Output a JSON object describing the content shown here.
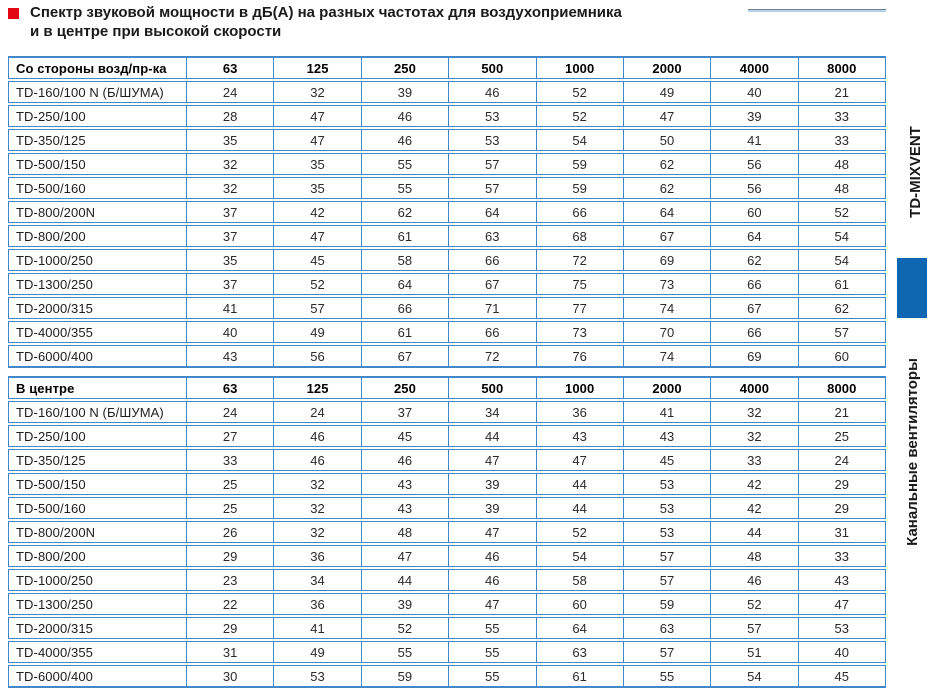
{
  "title": {
    "line1": "Спектр звуковой мощности в дБ(А) на разных частотах для воздухоприемника",
    "line2": "и в центре при высокой скорости"
  },
  "frequencies": [
    "63",
    "125",
    "250",
    "500",
    "1000",
    "2000",
    "4000",
    "8000"
  ],
  "tables": [
    {
      "label": "Со стороны возд/пр-ка",
      "rows": [
        {
          "model": "TD-160/100 N (Б/ШУМА)",
          "values": [
            "24",
            "32",
            "39",
            "46",
            "52",
            "49",
            "40",
            "21"
          ]
        },
        {
          "model": "TD-250/100",
          "values": [
            "28",
            "47",
            "46",
            "53",
            "52",
            "47",
            "39",
            "33"
          ]
        },
        {
          "model": "TD-350/125",
          "values": [
            "35",
            "47",
            "46",
            "53",
            "54",
            "50",
            "41",
            "33"
          ]
        },
        {
          "model": "TD-500/150",
          "values": [
            "32",
            "35",
            "55",
            "57",
            "59",
            "62",
            "56",
            "48"
          ]
        },
        {
          "model": "TD-500/160",
          "values": [
            "32",
            "35",
            "55",
            "57",
            "59",
            "62",
            "56",
            "48"
          ]
        },
        {
          "model": "TD-800/200N",
          "values": [
            "37",
            "42",
            "62",
            "64",
            "66",
            "64",
            "60",
            "52"
          ]
        },
        {
          "model": "TD-800/200",
          "values": [
            "37",
            "47",
            "61",
            "63",
            "68",
            "67",
            "64",
            "54"
          ]
        },
        {
          "model": "TD-1000/250",
          "values": [
            "35",
            "45",
            "58",
            "66",
            "72",
            "69",
            "62",
            "54"
          ]
        },
        {
          "model": "TD-1300/250",
          "values": [
            "37",
            "52",
            "64",
            "67",
            "75",
            "73",
            "66",
            "61"
          ]
        },
        {
          "model": "TD-2000/315",
          "values": [
            "41",
            "57",
            "66",
            "71",
            "77",
            "74",
            "67",
            "62"
          ]
        },
        {
          "model": "TD-4000/355",
          "values": [
            "40",
            "49",
            "61",
            "66",
            "73",
            "70",
            "66",
            "57"
          ]
        },
        {
          "model": "TD-6000/400",
          "values": [
            "43",
            "56",
            "67",
            "72",
            "76",
            "74",
            "69",
            "60"
          ]
        }
      ]
    },
    {
      "label": "В центре",
      "rows": [
        {
          "model": "TD-160/100 N (Б/ШУМА)",
          "values": [
            "24",
            "24",
            "37",
            "34",
            "36",
            "41",
            "32",
            "21"
          ]
        },
        {
          "model": "TD-250/100",
          "values": [
            "27",
            "46",
            "45",
            "44",
            "43",
            "43",
            "32",
            "25"
          ]
        },
        {
          "model": "TD-350/125",
          "values": [
            "33",
            "46",
            "46",
            "47",
            "47",
            "45",
            "33",
            "24"
          ]
        },
        {
          "model": "TD-500/150",
          "values": [
            "25",
            "32",
            "43",
            "39",
            "44",
            "53",
            "42",
            "29"
          ]
        },
        {
          "model": "TD-500/160",
          "values": [
            "25",
            "32",
            "43",
            "39",
            "44",
            "53",
            "42",
            "29"
          ]
        },
        {
          "model": "TD-800/200N",
          "values": [
            "26",
            "32",
            "48",
            "47",
            "52",
            "53",
            "44",
            "31"
          ]
        },
        {
          "model": "TD-800/200",
          "values": [
            "29",
            "36",
            "47",
            "46",
            "54",
            "57",
            "48",
            "33"
          ]
        },
        {
          "model": "TD-1000/250",
          "values": [
            "23",
            "34",
            "44",
            "46",
            "58",
            "57",
            "46",
            "43"
          ]
        },
        {
          "model": "TD-1300/250",
          "values": [
            "22",
            "36",
            "39",
            "47",
            "60",
            "59",
            "52",
            "47"
          ]
        },
        {
          "model": "TD-2000/315",
          "values": [
            "29",
            "41",
            "52",
            "55",
            "64",
            "63",
            "57",
            "53"
          ]
        },
        {
          "model": "TD-4000/355",
          "values": [
            "31",
            "49",
            "55",
            "55",
            "63",
            "57",
            "51",
            "40"
          ]
        },
        {
          "model": "TD-6000/400",
          "values": [
            "30",
            "53",
            "59",
            "55",
            "61",
            "55",
            "54",
            "45"
          ]
        }
      ]
    }
  ],
  "sidebar": {
    "series_label": "TD-MIXVENT",
    "category_label": "Канальные вентиляторы"
  },
  "colors": {
    "table_border": "#4288c8",
    "accent_square": "#0f67b1",
    "title_bullet": "#e30613"
  }
}
